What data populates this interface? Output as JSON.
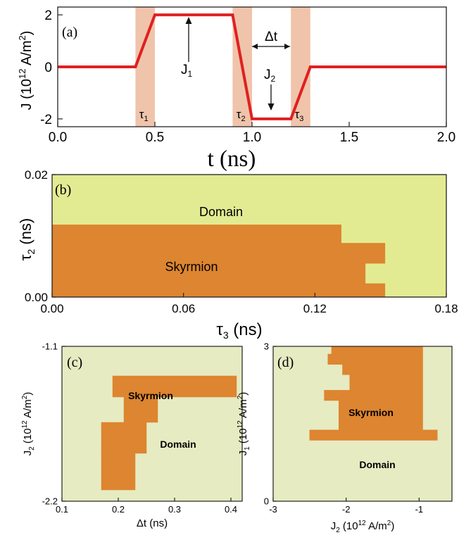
{
  "chart_data": [
    {
      "panel_label": "(a)",
      "type": "line",
      "xlabel": "t (ns)",
      "ylabel": "J (10",
      "ylabel_exp": "12",
      "ylabel_tail": " A/m",
      "ylabel_sup": "2",
      "ylabel_close": ")",
      "xlim": [
        0.0,
        2.0
      ],
      "ylim": [
        -2.3,
        2.3
      ],
      "x_ticks": [
        0.0,
        0.5,
        1.0,
        1.5,
        2.0
      ],
      "x_tick_labels": [
        "0.0",
        "0.5",
        "1.0",
        "1.5",
        "2.0"
      ],
      "y_ticks": [
        -2,
        0,
        2
      ],
      "y_tick_labels": [
        "-2",
        "0",
        "2"
      ],
      "series": [
        {
          "x": [
            0.0,
            0.4,
            0.5,
            0.9,
            1.0,
            1.2,
            1.3,
            2.0
          ],
          "y": [
            0,
            0,
            2,
            2,
            -2,
            -2,
            0,
            0
          ],
          "color": "#e02020"
        }
      ],
      "shaded_regions": [
        {
          "x0": 0.4,
          "x1": 0.5,
          "label": "τ",
          "sub": "1"
        },
        {
          "x0": 0.9,
          "x1": 1.0,
          "label": "τ",
          "sub": "2"
        },
        {
          "x0": 1.2,
          "x1": 1.3,
          "label": "τ",
          "sub": "3"
        }
      ],
      "annotations": {
        "j1_label": "J",
        "j1_sub": "1",
        "j2_label": "J",
        "j2_sub": "2",
        "dt_label": "Δt"
      },
      "shade_color": "#f0c4ab"
    },
    {
      "panel_label": "(b)",
      "type": "heatmap",
      "xlabel": "τ",
      "xlabel_sub": "3",
      "xlabel_unit": " (ns)",
      "ylabel": "τ",
      "ylabel_sub": "2",
      "ylabel_unit": " (ns)",
      "xlim": [
        0.0,
        0.18
      ],
      "ylim": [
        0.0,
        0.02
      ],
      "x_ticks": [
        0.0,
        0.06,
        0.12,
        0.18
      ],
      "x_tick_labels": [
        "0.00",
        "0.06",
        "0.12",
        "0.18"
      ],
      "y_ticks": [
        0.0,
        0.02
      ],
      "y_tick_labels": [
        "0.00",
        "0.02"
      ],
      "regions": [
        {
          "x0": 0.0,
          "x1": 0.132,
          "y0": 0.0,
          "y1": 0.0118
        },
        {
          "x0": 0.132,
          "x1": 0.152,
          "y0": 0.0055,
          "y1": 0.0088
        },
        {
          "x0": 0.132,
          "x1": 0.143,
          "y0": 0.0022,
          "y1": 0.0055
        },
        {
          "x0": 0.132,
          "x1": 0.152,
          "y0": 0.0,
          "y1": 0.0022
        }
      ],
      "domain_label": "Domain",
      "skyrmion_label": "Skyrmion",
      "domain_color": "#e3eb92",
      "skyrmion_color": "#dd8530"
    },
    {
      "panel_label": "(c)",
      "type": "heatmap",
      "xlabel": "Δt (ns)",
      "ylabel": "J",
      "ylabel_sub": "2",
      "ylabel_unit": " (10",
      "ylabel_exp": "12",
      "ylabel_tail": " A/m",
      "ylabel_sup": "2",
      "ylabel_close": ")",
      "xlim": [
        0.1,
        0.42
      ],
      "ylim": [
        -2.2,
        -1.1
      ],
      "x_ticks": [
        0.1,
        0.2,
        0.3,
        0.4
      ],
      "x_tick_labels": [
        "0.1",
        "0.2",
        "0.3",
        "0.4"
      ],
      "y_ticks": [
        -2.2,
        -1.1
      ],
      "y_tick_labels": [
        "-2.2",
        "-1.1"
      ],
      "regions": [
        {
          "x0": 0.19,
          "x1": 0.41,
          "y0": -1.46,
          "y1": -1.31
        },
        {
          "x0": 0.21,
          "x1": 0.27,
          "y0": -1.64,
          "y1": -1.46
        },
        {
          "x0": 0.17,
          "x1": 0.25,
          "y0": -1.86,
          "y1": -1.64
        },
        {
          "x0": 0.17,
          "x1": 0.23,
          "y0": -2.12,
          "y1": -1.86
        }
      ],
      "domain_label": "Domain",
      "skyrmion_label": "Skyrmion",
      "domain_color": "#e6ebc2",
      "skyrmion_color": "#dd8530"
    },
    {
      "panel_label": "(d)",
      "type": "heatmap",
      "xlabel": "J",
      "xlabel_sub": "2",
      "xlabel_unit": " (10",
      "xlabel_exp": "12",
      "xlabel_tail": " A/m",
      "xlabel_sup": "2",
      "xlabel_close": ")",
      "ylabel": "J",
      "ylabel_sub": "1",
      "ylabel_unit": " (10",
      "ylabel_exp": "12",
      "ylabel_tail": " A/m",
      "ylabel_sup": "2",
      "ylabel_close": ")",
      "xlim": [
        -3.0,
        -0.55
      ],
      "ylim": [
        0,
        3
      ],
      "x_ticks": [
        -3,
        -2,
        -1
      ],
      "x_tick_labels": [
        "-3",
        "-2",
        "-1"
      ],
      "y_ticks": [
        0,
        3
      ],
      "y_tick_labels": [
        "0",
        "3"
      ],
      "regions": [
        {
          "x0": -1.95,
          "x1": -0.95,
          "y0": 1.95,
          "y1": 3.0
        },
        {
          "x0": -2.2,
          "x1": -1.65,
          "y0": 2.85,
          "y1": 3.0
        },
        {
          "x0": -2.25,
          "x1": -1.75,
          "y0": 2.65,
          "y1": 2.85
        },
        {
          "x0": -2.05,
          "x1": -1.65,
          "y0": 2.45,
          "y1": 2.65
        },
        {
          "x0": -1.95,
          "x1": -1.75,
          "y0": 2.15,
          "y1": 2.45
        },
        {
          "x0": -2.3,
          "x1": -1.95,
          "y0": 1.95,
          "y1": 2.15
        },
        {
          "x0": -2.1,
          "x1": -0.95,
          "y0": 1.38,
          "y1": 1.95
        },
        {
          "x0": -2.5,
          "x1": -0.75,
          "y0": 1.18,
          "y1": 1.38
        }
      ],
      "domain_label": "Domain",
      "skyrmion_label": "Skyrmion",
      "domain_color": "#e6ebc2",
      "skyrmion_color": "#dd8530"
    }
  ]
}
